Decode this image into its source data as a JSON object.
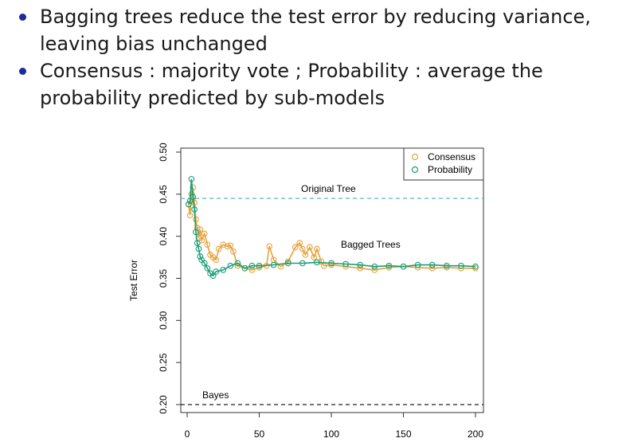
{
  "bullets": [
    {
      "line1": "Bagging trees reduce the test error by reducing variance,",
      "line2": "leaving bias unchanged"
    },
    {
      "line1": "Consensus : majority vote ; Probability : average the",
      "line2": "probability predicted by sub-models"
    }
  ],
  "colors": {
    "bullet": "#1f2a9c",
    "consensus": "#e6a23c",
    "probability": "#1b9e77",
    "original_line": "#5fb6c6",
    "bayes_line": "#222222"
  },
  "chart_data": {
    "type": "line",
    "xlabel": "",
    "ylabel": "Test Error",
    "xlim": [
      0,
      200
    ],
    "ylim": [
      0.2,
      0.5
    ],
    "x_ticks": [
      0,
      50,
      100,
      150,
      200
    ],
    "y_ticks": [
      "0.20",
      "0.25",
      "0.30",
      "0.35",
      "0.40",
      "0.45",
      "0.50"
    ],
    "grid": false,
    "legend": {
      "position": "top-right",
      "entries": [
        "Consensus",
        "Probability"
      ]
    },
    "reference_lines": [
      {
        "label": "Original Tree",
        "y": 0.445,
        "style": "dashed"
      },
      {
        "label": "Bayes",
        "y": 0.2,
        "style": "dashed"
      }
    ],
    "annotations": [
      {
        "text": "Bagged Trees"
      }
    ],
    "series": [
      {
        "name": "Consensus",
        "x": [
          1,
          2,
          3,
          4,
          5,
          6,
          7,
          8,
          9,
          10,
          12,
          14,
          16,
          18,
          20,
          22,
          25,
          28,
          30,
          32,
          35,
          40,
          45,
          50,
          55,
          57,
          60,
          65,
          70,
          75,
          78,
          80,
          82,
          85,
          88,
          90,
          93,
          95,
          100,
          110,
          120,
          130,
          140,
          150,
          160,
          170,
          180,
          190,
          200
        ],
        "values": [
          0.438,
          0.425,
          0.45,
          0.458,
          0.44,
          0.42,
          0.41,
          0.398,
          0.408,
          0.395,
          0.403,
          0.39,
          0.378,
          0.375,
          0.372,
          0.385,
          0.39,
          0.388,
          0.389,
          0.382,
          0.365,
          0.362,
          0.36,
          0.363,
          0.365,
          0.388,
          0.372,
          0.364,
          0.37,
          0.387,
          0.392,
          0.385,
          0.378,
          0.387,
          0.375,
          0.385,
          0.37,
          0.365,
          0.366,
          0.364,
          0.362,
          0.36,
          0.363,
          0.364,
          0.363,
          0.362,
          0.363,
          0.362,
          0.362
        ]
      },
      {
        "name": "Probability",
        "x": [
          1,
          2,
          3,
          4,
          5,
          6,
          7,
          8,
          9,
          10,
          12,
          14,
          16,
          18,
          20,
          25,
          30,
          35,
          40,
          45,
          50,
          60,
          70,
          80,
          90,
          100,
          110,
          120,
          130,
          140,
          150,
          160,
          170,
          180,
          190,
          200
        ],
        "values": [
          0.438,
          0.442,
          0.468,
          0.447,
          0.432,
          0.405,
          0.392,
          0.385,
          0.376,
          0.372,
          0.368,
          0.362,
          0.356,
          0.353,
          0.358,
          0.36,
          0.365,
          0.368,
          0.362,
          0.365,
          0.365,
          0.366,
          0.368,
          0.368,
          0.369,
          0.368,
          0.367,
          0.366,
          0.364,
          0.365,
          0.364,
          0.366,
          0.366,
          0.365,
          0.365,
          0.364
        ]
      }
    ]
  }
}
